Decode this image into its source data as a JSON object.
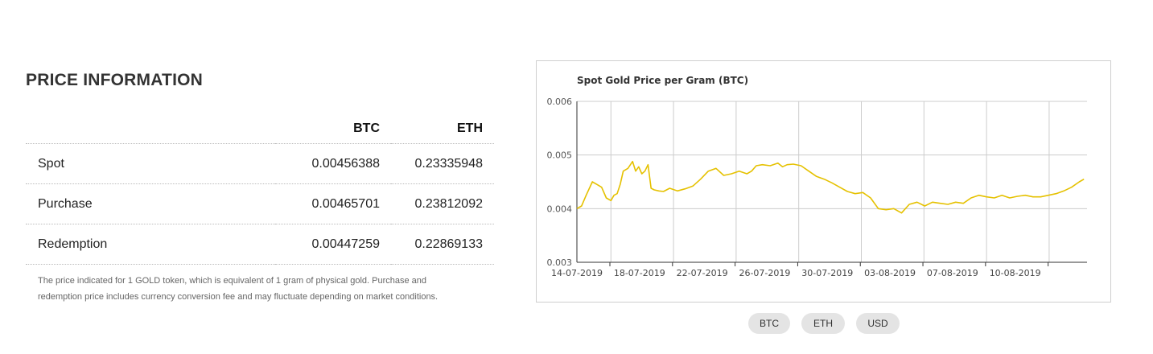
{
  "section_title": "PRICE INFORMATION",
  "table": {
    "columns": [
      "BTC",
      "ETH"
    ],
    "rows": [
      {
        "label": "Spot",
        "btc": "0.00456388",
        "eth": "0.23335948"
      },
      {
        "label": "Purchase",
        "btc": "0.00465701",
        "eth": "0.23812092"
      },
      {
        "label": "Redemption",
        "btc": "0.00447259",
        "eth": "0.22869133"
      }
    ]
  },
  "note": "The price indicated for 1 GOLD token, which is equivalent of 1 gram of physical gold. Purchase and redemption price includes currency conversion fee and may fluctuate depending on market conditions.",
  "buttons": {
    "btc": "BTC",
    "eth": "ETH",
    "usd": "USD"
  },
  "colors": {
    "line": "#e5c100",
    "grid": "#cccccc",
    "axis": "#333333"
  },
  "chart_data": {
    "type": "line",
    "title": "Spot Gold Price per Gram (BTC)",
    "xlabel": "",
    "ylabel": "",
    "ylim": [
      0.003,
      0.006
    ],
    "yticks": [
      "0.006",
      "0.005",
      "0.004",
      "0.003"
    ],
    "xticks": [
      "14-07-2019",
      "18-07-2019",
      "22-07-2019",
      "26-07-2019",
      "30-07-2019",
      "03-08-2019",
      "07-08-2019",
      "10-08-2019"
    ],
    "grid": true,
    "legend": "none",
    "series": [
      {
        "x": [
          0,
          0.3,
          0.6,
          1.0,
          1.3,
          1.6,
          1.9,
          2.2,
          2.4,
          2.6,
          2.8,
          3.0,
          3.3,
          3.6,
          3.8,
          4.0,
          4.2,
          4.4,
          4.6,
          4.8,
          5.0,
          5.3,
          5.6,
          6.0,
          6.5,
          7.0,
          7.5,
          8.0,
          8.5,
          9.0,
          9.5,
          10.0,
          10.5,
          11.0,
          11.3,
          11.6,
          12.0,
          12.5,
          13.0,
          13.3,
          13.6,
          14.0,
          14.5,
          15.0,
          15.5,
          16.0,
          16.5,
          17.0,
          17.5,
          18.0,
          18.5,
          19.0,
          19.5,
          20.0,
          20.5,
          21.0,
          21.5,
          22.0,
          22.5,
          23.0,
          23.5,
          24.0,
          24.5,
          25.0,
          25.5,
          26.0,
          26.5,
          27.0,
          27.5,
          28.0,
          28.5,
          29.0,
          29.5,
          30.0,
          30.5,
          31.0,
          31.5,
          32.0,
          32.5,
          32.8
        ],
        "y": [
          0.004,
          0.00405,
          0.00425,
          0.0045,
          0.00445,
          0.0044,
          0.0042,
          0.00415,
          0.00425,
          0.00428,
          0.00445,
          0.0047,
          0.00475,
          0.00488,
          0.0047,
          0.00478,
          0.00465,
          0.0047,
          0.00482,
          0.00438,
          0.00435,
          0.00433,
          0.00432,
          0.00438,
          0.00433,
          0.00437,
          0.00442,
          0.00455,
          0.0047,
          0.00475,
          0.00462,
          0.00465,
          0.0047,
          0.00465,
          0.0047,
          0.0048,
          0.00482,
          0.0048,
          0.00485,
          0.00478,
          0.00482,
          0.00483,
          0.0048,
          0.0047,
          0.0046,
          0.00455,
          0.00448,
          0.0044,
          0.00432,
          0.00428,
          0.0043,
          0.0042,
          0.004,
          0.00398,
          0.004,
          0.00392,
          0.00408,
          0.00412,
          0.00405,
          0.00412,
          0.0041,
          0.00408,
          0.00412,
          0.0041,
          0.0042,
          0.00425,
          0.00422,
          0.0042,
          0.00425,
          0.0042,
          0.00423,
          0.00425,
          0.00422,
          0.00422,
          0.00425,
          0.00428,
          0.00433,
          0.0044,
          0.0045,
          0.00455
        ]
      }
    ]
  }
}
